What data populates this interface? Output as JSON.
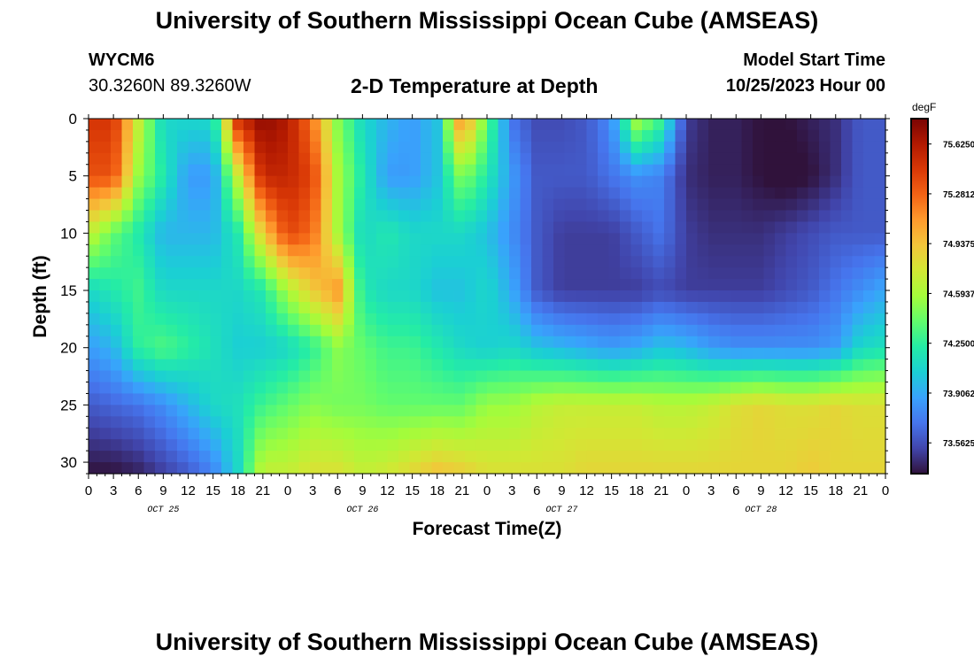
{
  "header": {
    "title": "University of Southern Mississippi Ocean Cube (AMSEAS)",
    "station": "WYCM6",
    "coords": "30.3260N  89.3260W",
    "subtitle": "2-D Temperature at Depth",
    "model_start_label": "Model Start Time",
    "model_start_value": "10/25/2023 Hour 00"
  },
  "footer": {
    "title": "University of Southern Mississippi Ocean Cube (AMSEAS)"
  },
  "chart_data": {
    "type": "heatmap",
    "title": "2-D Temperature at Depth",
    "xlabel": "Forecast Time(Z)",
    "ylabel": "Depth (ft)",
    "x_ticks": [
      "0",
      "3",
      "6",
      "9",
      "12",
      "15",
      "18",
      "21",
      "0",
      "3",
      "6",
      "9",
      "12",
      "15",
      "18",
      "21",
      "0",
      "3",
      "6",
      "9",
      "12",
      "15",
      "18",
      "21",
      "0",
      "3",
      "6",
      "9",
      "12",
      "15",
      "18",
      "21",
      "0"
    ],
    "day_labels": [
      "OCT 25",
      "OCT 26",
      "OCT 27",
      "OCT 28"
    ],
    "y_ticks": [
      "0",
      "5",
      "10",
      "15",
      "20",
      "25",
      "30"
    ],
    "xlim_hours": [
      0,
      96
    ],
    "ylim_ft": [
      0,
      31
    ],
    "colorbar": {
      "unit": "degF",
      "ticks": [
        "75.6250",
        "75.2812",
        "74.9375",
        "74.5937",
        "74.2500",
        "73.9062",
        "73.5625"
      ],
      "range": [
        73.35,
        75.8
      ],
      "colors": [
        "#30123b",
        "#4145ab",
        "#4675ed",
        "#39a2fc",
        "#1bcfd4",
        "#24eca6",
        "#61fc6c",
        "#a4fc3b",
        "#d1e834",
        "#f3c63a",
        "#fe9b2d",
        "#f36315",
        "#d93806",
        "#b11901",
        "#7a0403"
      ]
    },
    "grid_nodes_hours": [
      0,
      3,
      6,
      9,
      12,
      15,
      18,
      21,
      24,
      27,
      30,
      33,
      36,
      39,
      42,
      45,
      48,
      51,
      54,
      57,
      60,
      63,
      66,
      69,
      72,
      75,
      78,
      81,
      84,
      87,
      90,
      93,
      96
    ],
    "grid_nodes_depth_ft": [
      0,
      5,
      10,
      15,
      20,
      25,
      31
    ],
    "temperature_degF": [
      [
        75.47,
        75.47,
        74.71,
        74.09,
        74.09,
        74.1,
        75.5,
        75.74,
        75.62,
        75.2,
        74.5,
        74.1,
        73.95,
        73.85,
        74.0,
        75.2,
        74.4,
        73.7,
        73.55,
        73.55,
        73.6,
        73.8,
        74.6,
        74.3,
        73.5,
        73.4,
        73.4,
        73.35,
        73.35,
        73.4,
        73.45,
        73.6,
        73.6
      ],
      [
        75.35,
        75.35,
        74.55,
        74.2,
        73.85,
        73.85,
        74.7,
        75.55,
        75.55,
        75.4,
        74.6,
        74.2,
        73.85,
        73.85,
        74.0,
        74.5,
        74.2,
        73.85,
        73.6,
        73.6,
        73.6,
        73.7,
        73.8,
        73.75,
        73.45,
        73.4,
        73.4,
        73.35,
        73.3,
        73.35,
        73.45,
        73.6,
        73.6
      ],
      [
        74.7,
        74.4,
        74.2,
        73.95,
        73.95,
        73.95,
        74.2,
        74.9,
        75.4,
        75.25,
        74.6,
        74.1,
        74.2,
        74.1,
        74.1,
        74.1,
        74.0,
        73.8,
        73.6,
        73.5,
        73.5,
        73.5,
        73.6,
        73.7,
        73.5,
        73.45,
        73.45,
        73.45,
        73.5,
        73.55,
        73.6,
        73.6,
        73.6
      ],
      [
        74.1,
        74.2,
        74.3,
        74.1,
        74.1,
        74.1,
        74.1,
        74.2,
        74.6,
        74.9,
        75.1,
        74.2,
        74.1,
        74.1,
        74.0,
        74.0,
        74.1,
        73.9,
        73.6,
        73.5,
        73.5,
        73.5,
        73.5,
        73.55,
        73.5,
        73.5,
        73.5,
        73.5,
        73.55,
        73.6,
        73.7,
        73.8,
        73.9
      ],
      [
        73.85,
        73.95,
        74.25,
        74.35,
        74.25,
        74.15,
        74.05,
        74.05,
        74.1,
        74.25,
        74.5,
        74.4,
        74.3,
        74.3,
        74.2,
        74.1,
        74.05,
        74.1,
        74.0,
        73.95,
        73.9,
        73.85,
        73.9,
        74.0,
        73.95,
        73.85,
        73.8,
        73.8,
        73.8,
        73.8,
        73.85,
        74.1,
        74.15
      ],
      [
        73.6,
        73.65,
        73.7,
        73.8,
        73.95,
        74.1,
        74.15,
        74.3,
        74.4,
        74.5,
        74.45,
        74.45,
        74.4,
        74.4,
        74.4,
        74.4,
        74.55,
        74.55,
        74.65,
        74.7,
        74.7,
        74.7,
        74.7,
        74.65,
        74.65,
        74.7,
        74.8,
        74.85,
        74.8,
        74.8,
        74.85,
        74.8,
        74.8
      ],
      [
        73.35,
        73.35,
        73.4,
        73.5,
        73.6,
        73.75,
        74.1,
        74.7,
        74.7,
        74.8,
        74.8,
        74.7,
        74.75,
        74.85,
        74.95,
        74.9,
        74.8,
        74.8,
        74.8,
        74.8,
        74.85,
        74.85,
        74.85,
        74.85,
        74.85,
        74.85,
        74.85,
        74.85,
        74.85,
        74.9,
        74.85,
        74.85,
        74.85
      ]
    ]
  }
}
